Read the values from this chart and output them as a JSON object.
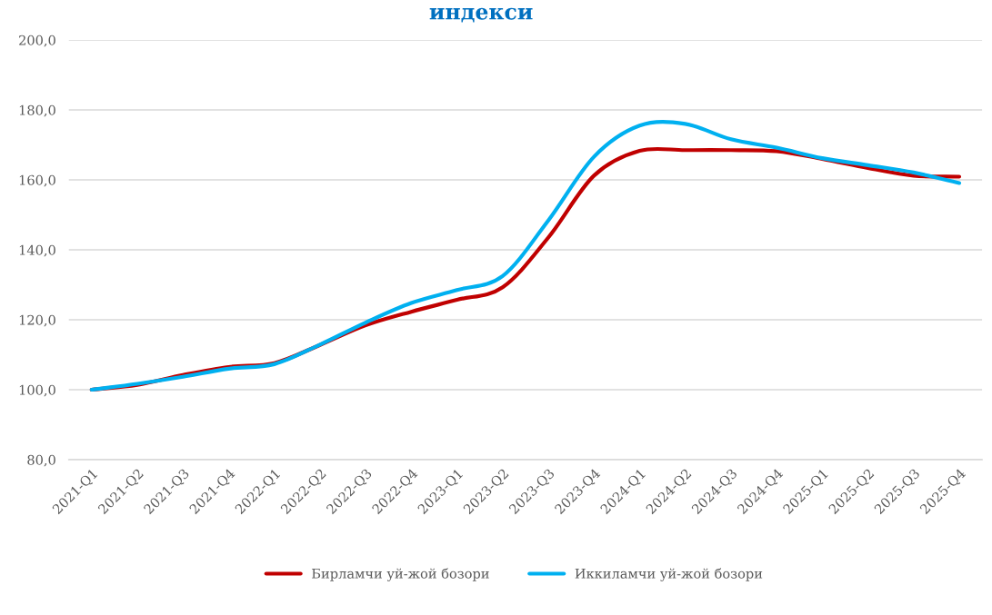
{
  "chart_data": {
    "type": "line",
    "title": "индекси",
    "categories": [
      "2021-Q1",
      "2021-Q2",
      "2021-Q3",
      "2021-Q4",
      "2022-Q1",
      "2022-Q2",
      "2022-Q3",
      "2022-Q4",
      "2023-Q1",
      "2023-Q2",
      "2023-Q3",
      "2023-Q4",
      "2024-Q1",
      "2024-Q2",
      "2024-Q3",
      "2024-Q4",
      "2025-Q1",
      "2025-Q2",
      "2025-Q3",
      "2025-Q4"
    ],
    "series": [
      {
        "name": "Бирламчи уй-жой бозори",
        "color": "#c00000",
        "values": [
          100.0,
          101.4,
          104.2,
          106.5,
          107.6,
          112.8,
          118.4,
          122.3,
          125.7,
          129.3,
          143.5,
          161.2,
          168.3,
          168.5,
          168.5,
          168.2,
          166.0,
          163.4,
          161.2,
          160.9
        ]
      },
      {
        "name": "Иккиламчи уй-жой бозори",
        "color": "#00b0f0",
        "values": [
          100.0,
          101.7,
          103.7,
          106.0,
          107.3,
          112.9,
          119.2,
          124.8,
          128.5,
          132.5,
          148.4,
          166.6,
          175.5,
          176.0,
          171.6,
          169.2,
          166.2,
          164.2,
          162.1,
          159.1
        ]
      }
    ],
    "ylim": [
      80,
      200
    ],
    "yticks": [
      {
        "value": 80,
        "label": "80,0"
      },
      {
        "value": 100,
        "label": "100,0"
      },
      {
        "value": 120,
        "label": "120,0"
      },
      {
        "value": 140,
        "label": "140,0"
      },
      {
        "value": 160,
        "label": "160,0"
      },
      {
        "value": 180,
        "label": "180,0"
      },
      {
        "value": 200,
        "label": "200,0"
      }
    ],
    "grid": "y",
    "legend": "bottom"
  }
}
